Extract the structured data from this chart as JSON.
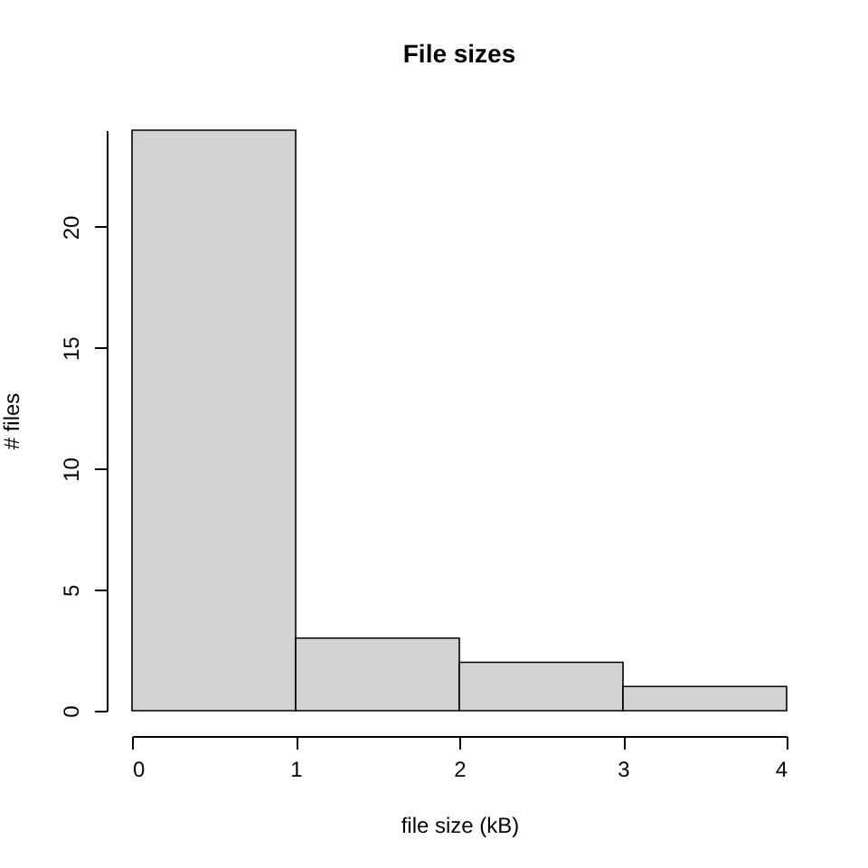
{
  "chart_data": {
    "type": "histogram",
    "title": "File sizes",
    "xlabel": "file size (kB)",
    "ylabel": "# files",
    "bins": [
      0,
      1,
      2,
      3,
      4
    ],
    "values": [
      24,
      3,
      2,
      1
    ],
    "color": "#d3d3d3",
    "xlim": [
      0,
      4
    ],
    "xticks": [
      0,
      1,
      2,
      3,
      4
    ],
    "ylim": [
      0,
      24
    ],
    "yticks": [
      0,
      5,
      10,
      15,
      20
    ],
    "grid": false
  }
}
